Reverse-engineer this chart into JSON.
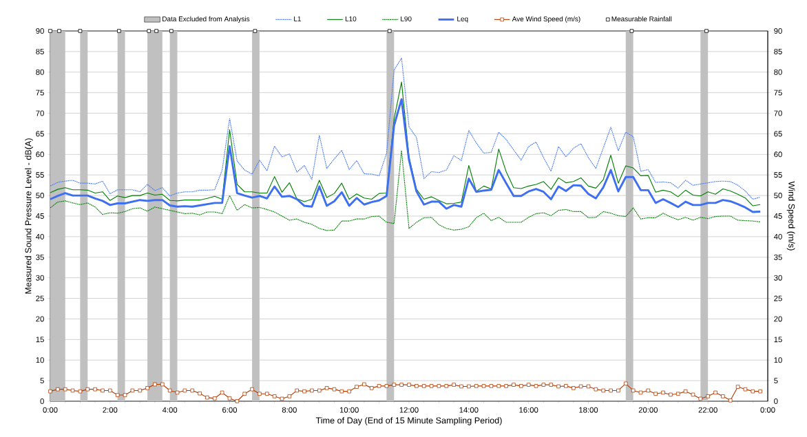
{
  "chart_data": {
    "type": "line",
    "xlabel": "Time of Day (End of 15 Minute Sampling Period)",
    "ylabel": "Measured Sound Pressure Level - dB(A)",
    "y2label": "Wind Speed (m/s)",
    "x": [
      0,
      0.25,
      0.5,
      0.75,
      1,
      1.25,
      1.5,
      1.75,
      2,
      2.25,
      2.5,
      2.75,
      3,
      3.25,
      3.5,
      3.75,
      4,
      4.25,
      4.5,
      4.75,
      5,
      5.25,
      5.5,
      5.75,
      6,
      6.25,
      6.5,
      6.75,
      7,
      7.25,
      7.5,
      7.75,
      8,
      8.25,
      8.5,
      8.75,
      9,
      9.25,
      9.5,
      9.75,
      10,
      10.25,
      10.5,
      10.75,
      11,
      11.25,
      11.5,
      11.75,
      12,
      12.25,
      12.5,
      12.75,
      13,
      13.25,
      13.5,
      13.75,
      14,
      14.25,
      14.5,
      14.75,
      15,
      15.25,
      15.5,
      15.75,
      16,
      16.25,
      16.5,
      16.75,
      17,
      17.25,
      17.5,
      17.75,
      18,
      18.25,
      18.5,
      18.75,
      19,
      19.25,
      19.5,
      19.75,
      20,
      20.25,
      20.5,
      20.75,
      21,
      21.25,
      21.5,
      21.75,
      22,
      22.25,
      22.5,
      22.75,
      23,
      23.25,
      23.5,
      23.75
    ],
    "xlim": [
      0,
      24
    ],
    "xticks": [
      {
        "value": 0,
        "label": "0:00"
      },
      {
        "value": 2,
        "label": "2:00"
      },
      {
        "value": 4,
        "label": "4:00"
      },
      {
        "value": 6,
        "label": "6:00"
      },
      {
        "value": 8,
        "label": "8:00"
      },
      {
        "value": 10,
        "label": "10:00"
      },
      {
        "value": 12,
        "label": "12:00"
      },
      {
        "value": 14,
        "label": "14:00"
      },
      {
        "value": 16,
        "label": "16:00"
      },
      {
        "value": 18,
        "label": "18:00"
      },
      {
        "value": 20,
        "label": "20:00"
      },
      {
        "value": 22,
        "label": "22:00"
      },
      {
        "value": 24,
        "label": "0:00"
      }
    ],
    "ylim": [
      0,
      90
    ],
    "yticks": [
      0,
      5,
      10,
      15,
      20,
      25,
      30,
      35,
      40,
      45,
      50,
      55,
      60,
      65,
      70,
      75,
      80,
      85,
      90
    ],
    "y2lim": [
      0,
      90
    ],
    "y2ticks": [
      0,
      5,
      10,
      15,
      20,
      25,
      30,
      35,
      40,
      45,
      50,
      55,
      60,
      65,
      70,
      75,
      80,
      85,
      90
    ],
    "grid": "y",
    "legend": "top",
    "bands": [
      {
        "axis": "x",
        "from": 0,
        "to": 0.5,
        "label": "Data Excluded from Analysis",
        "color": "#c0c0c0"
      },
      {
        "axis": "x",
        "from": 1,
        "to": 1.25,
        "color": "#c0c0c0"
      },
      {
        "axis": "x",
        "from": 2.25,
        "to": 2.5,
        "color": "#c0c0c0"
      },
      {
        "axis": "x",
        "from": 3.25,
        "to": 3.75,
        "color": "#c0c0c0"
      },
      {
        "axis": "x",
        "from": 4,
        "to": 4.25,
        "color": "#c0c0c0"
      },
      {
        "axis": "x",
        "from": 6.75,
        "to": 7,
        "color": "#c0c0c0"
      },
      {
        "axis": "x",
        "from": 11.25,
        "to": 11.5,
        "color": "#c0c0c0"
      },
      {
        "axis": "x",
        "from": 19.25,
        "to": 19.5,
        "color": "#c0c0c0"
      },
      {
        "axis": "x",
        "from": 21.75,
        "to": 22,
        "color": "#c0c0c0"
      }
    ],
    "series": [
      {
        "name": "L1",
        "color": "#4a7cf7",
        "line_style": "dotted",
        "values": [
          52.3,
          53.2,
          53.5,
          53.7,
          53.0,
          53.0,
          52.8,
          53.5,
          50.4,
          51.4,
          51.4,
          51.4,
          50.9,
          52.7,
          51.2,
          51.9,
          49.9,
          50.6,
          50.9,
          50.9,
          51.3,
          51.3,
          51.4,
          56.2,
          68.7,
          58.4,
          56.2,
          55.2,
          58.6,
          56.0,
          62.0,
          59.4,
          60.1,
          55.7,
          57.3,
          53.9,
          64.6,
          56.6,
          58.9,
          61.0,
          56.3,
          58.5,
          55.3,
          55.2,
          54.8,
          60.3,
          80.5,
          83.4,
          66.7,
          64.1,
          54.1,
          55.8,
          55.6,
          56.2,
          59.7,
          58.5,
          65.8,
          62.8,
          60.3,
          60.5,
          65.4,
          63.6,
          61.1,
          58.6,
          61.9,
          63.0,
          59.2,
          55.9,
          61.9,
          59.4,
          61.5,
          62.6,
          59.2,
          56.6,
          61.6,
          66.6,
          60.9,
          65.4,
          64.3,
          55.9,
          56.3,
          53.2,
          53.3,
          53.1,
          51.8,
          53.7,
          52.5,
          52.8,
          53.1,
          53.4,
          53.5,
          53.4,
          52.5,
          51.1,
          49.1,
          49.6
        ]
      },
      {
        "name": "L10",
        "color": "#008000",
        "line_style": "solid",
        "values": [
          50.7,
          51.5,
          51.9,
          51.4,
          51.4,
          51.3,
          50.6,
          50.9,
          48.8,
          49.9,
          49.5,
          50.0,
          50.0,
          50.6,
          50.1,
          50.3,
          48.8,
          48.7,
          48.9,
          48.9,
          48.9,
          49.3,
          49.8,
          49.1,
          66.0,
          52.7,
          50.9,
          50.9,
          50.6,
          50.6,
          54.6,
          50.8,
          53.1,
          49.2,
          48.5,
          49.1,
          53.7,
          49.5,
          50.5,
          53.0,
          49.1,
          50.4,
          49.4,
          49.1,
          50.5,
          50.6,
          68.6,
          77.6,
          59.4,
          51.5,
          49.1,
          49.7,
          48.8,
          48.0,
          48.1,
          48.4,
          57.3,
          51.0,
          52.3,
          51.6,
          61.3,
          55.8,
          51.9,
          51.7,
          52.3,
          52.7,
          53.4,
          51.5,
          54.3,
          53.1,
          53.4,
          54.3,
          52.3,
          51.8,
          53.9,
          59.8,
          53.0,
          57.2,
          56.7,
          54.8,
          54.9,
          50.8,
          51.3,
          50.9,
          49.7,
          51.3,
          50.1,
          49.9,
          50.9,
          50.3,
          51.6,
          51.1,
          50.3,
          49.4,
          47.5,
          47.8
        ]
      },
      {
        "name": "L90",
        "color": "#008000",
        "line_style": "dotted",
        "values": [
          47.0,
          48.4,
          48.7,
          48.2,
          47.8,
          48.2,
          47.2,
          45.4,
          45.8,
          45.7,
          46.1,
          46.8,
          47.0,
          46.2,
          47.2,
          46.8,
          46.4,
          46.0,
          45.6,
          45.7,
          45.3,
          46.0,
          46.0,
          45.6,
          50.0,
          46.4,
          47.8,
          47.0,
          47.1,
          46.6,
          46.0,
          45.0,
          44.0,
          44.3,
          43.5,
          43.0,
          42.0,
          41.5,
          41.6,
          43.8,
          43.8,
          44.3,
          44.3,
          44.9,
          45.0,
          43.5,
          43.2,
          60.9,
          42.0,
          43.5,
          44.6,
          44.7,
          42.9,
          42.0,
          41.6,
          41.8,
          42.4,
          44.6,
          45.7,
          43.9,
          44.7,
          43.5,
          43.5,
          43.5,
          44.7,
          45.6,
          45.8,
          45.1,
          46.4,
          46.6,
          46.1,
          46.1,
          44.6,
          44.7,
          46.1,
          45.7,
          45.1,
          44.9,
          47.0,
          44.3,
          44.6,
          44.6,
          45.7,
          44.8,
          44.1,
          44.7,
          44.0,
          44.7,
          44.4,
          44.9,
          45.0,
          45.0,
          44.0,
          43.9,
          43.8,
          43.6
        ]
      },
      {
        "name": "Leq",
        "color": "#3d6ff0",
        "line_style": "solid",
        "values": [
          49.1,
          49.9,
          50.6,
          50.0,
          50.0,
          50.0,
          49.3,
          48.7,
          47.7,
          48.1,
          48.1,
          48.5,
          48.9,
          48.7,
          48.9,
          48.9,
          47.6,
          47.3,
          47.4,
          47.3,
          47.6,
          47.9,
          48.2,
          48.2,
          62.0,
          50.6,
          50.0,
          49.5,
          49.9,
          49.3,
          52.2,
          49.7,
          49.9,
          49.1,
          47.5,
          47.3,
          52.2,
          47.5,
          48.6,
          50.8,
          47.5,
          49.4,
          47.8,
          48.4,
          48.8,
          49.9,
          67.0,
          73.4,
          58.6,
          51.0,
          47.8,
          48.5,
          48.5,
          46.8,
          47.7,
          47.3,
          54.1,
          50.9,
          51.2,
          51.4,
          56.2,
          53.0,
          49.9,
          49.9,
          51.0,
          51.6,
          50.9,
          49.1,
          52.2,
          51.1,
          52.5,
          52.4,
          50.4,
          49.3,
          52.0,
          56.2,
          51.0,
          54.5,
          54.5,
          51.3,
          51.3,
          48.2,
          49.1,
          48.2,
          47.2,
          48.5,
          47.7,
          47.7,
          48.2,
          48.2,
          48.9,
          48.6,
          47.9,
          47.1,
          46.0,
          46.1
        ]
      },
      {
        "name": "Ave Wind Speed (m/s)",
        "color": "#b33c00",
        "axis": "y2",
        "marker": "square",
        "line_style": "solid",
        "values": [
          2.4,
          2.9,
          2.9,
          2.6,
          2.4,
          2.9,
          2.9,
          2.6,
          2.6,
          1.5,
          1.5,
          2.6,
          2.6,
          3.2,
          4.1,
          4.1,
          2.6,
          2.1,
          2.6,
          2.6,
          1.9,
          0.9,
          0.7,
          2.1,
          0.7,
          0.0,
          1.8,
          2.9,
          1.8,
          1.8,
          1.2,
          0.6,
          1.2,
          2.6,
          2.4,
          2.6,
          2.6,
          3.2,
          2.9,
          2.4,
          2.4,
          3.5,
          4.1,
          3.2,
          3.7,
          3.7,
          4.0,
          4.0,
          4.0,
          3.7,
          3.7,
          3.7,
          3.7,
          3.7,
          4.0,
          3.6,
          3.6,
          3.7,
          3.7,
          3.7,
          3.7,
          3.7,
          4.0,
          3.7,
          4.0,
          3.7,
          4.0,
          4.0,
          3.6,
          3.7,
          3.2,
          3.6,
          3.6,
          2.9,
          2.6,
          2.6,
          2.6,
          4.3,
          2.6,
          2.1,
          2.6,
          1.8,
          2.1,
          1.6,
          1.8,
          2.4,
          1.6,
          0.6,
          1.2,
          2.1,
          1.2,
          0.2,
          3.5,
          2.9,
          2.4,
          2.4
        ]
      },
      {
        "name": "Measurable Rainfall",
        "type": "scatter",
        "color": "#000000",
        "marker": "square",
        "x": [
          0,
          0.3,
          1,
          2.3,
          3.3,
          3.55,
          4.05,
          6.85,
          11.35,
          19.45,
          21.95
        ],
        "values": [
          90,
          90,
          90,
          90,
          90,
          90,
          90,
          90,
          90,
          90,
          90
        ]
      }
    ]
  }
}
